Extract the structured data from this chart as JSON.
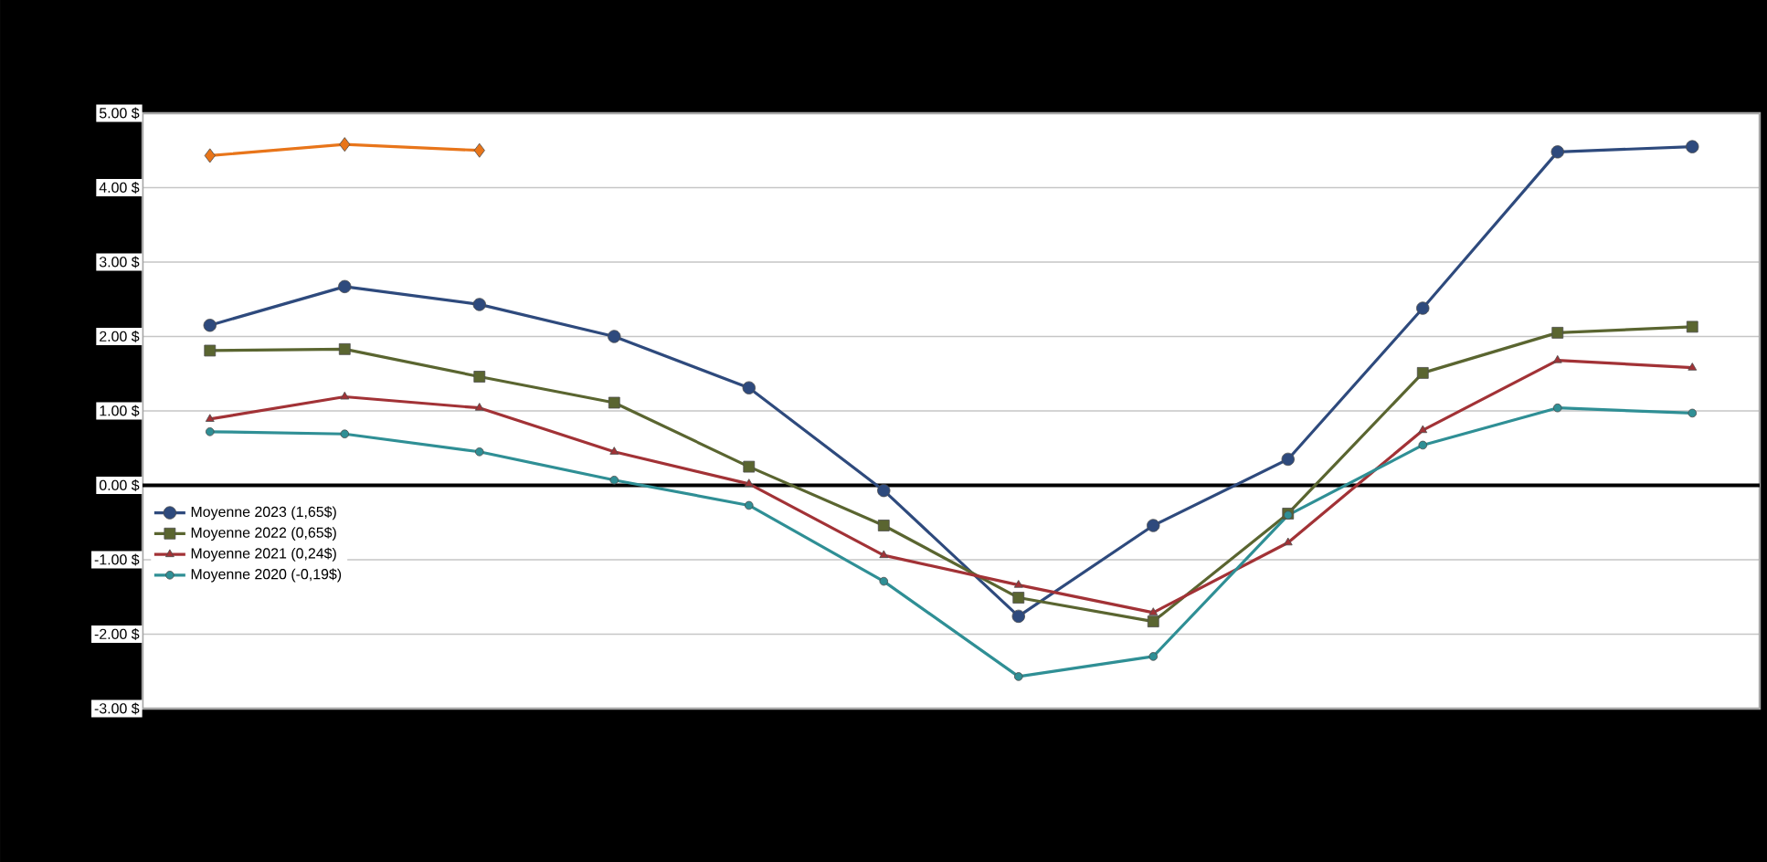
{
  "chart_data": {
    "type": "line",
    "categories": [
      null,
      null,
      null,
      null,
      null,
      null,
      null,
      null,
      null,
      null,
      null,
      null
    ],
    "series": [
      {
        "color": "#e8751a",
        "marker": "diamond",
        "values": [
          4.43,
          4.58,
          4.5,
          null,
          null,
          null,
          null,
          null,
          null,
          null,
          null,
          null
        ]
      },
      {
        "name": "Moyenne 2023 (1,65$)",
        "color": "#2e4a7d",
        "marker": "circle",
        "values": [
          2.15,
          2.67,
          2.43,
          2.0,
          1.31,
          -0.07,
          -1.76,
          -0.54,
          0.35,
          2.38,
          4.48,
          4.55
        ]
      },
      {
        "name": "Moyenne 2022 (0,65$)",
        "color": "#5a6530",
        "marker": "square",
        "values": [
          1.81,
          1.83,
          1.46,
          1.11,
          0.25,
          -0.54,
          -1.51,
          -1.83,
          -0.38,
          1.51,
          2.05,
          2.13
        ]
      },
      {
        "name": "Moyenne 2021 (0,24$)",
        "color": "#a23236",
        "marker": "triangle",
        "values": [
          0.89,
          1.19,
          1.04,
          0.45,
          0.02,
          -0.94,
          -1.34,
          -1.71,
          -0.77,
          0.74,
          1.68,
          1.58
        ]
      },
      {
        "name": "Moyenne 2020 (-0,19$)",
        "color": "#2f8f95",
        "marker": "circle",
        "values": [
          0.72,
          0.69,
          0.45,
          0.07,
          -0.27,
          -1.29,
          -2.57,
          -2.3,
          -0.4,
          0.54,
          1.04,
          0.97
        ]
      }
    ],
    "ylim": [
      -3,
      5
    ],
    "yticks": [
      {
        "value": 5,
        "label": "5.00 $"
      },
      {
        "value": 4,
        "label": "4.00 $"
      },
      {
        "value": 3,
        "label": "3.00 $"
      },
      {
        "value": 2,
        "label": "2.00 $"
      },
      {
        "value": 1,
        "label": "1.00 $"
      },
      {
        "value": 0,
        "label": "0.00 $"
      },
      {
        "value": -1,
        "label": "-1.00 $"
      },
      {
        "value": -2,
        "label": "-2.00 $"
      },
      {
        "value": -3,
        "label": "-3.00 $"
      }
    ],
    "ref_lines": [
      {
        "axis": "y",
        "value": 0,
        "color": "#000000"
      }
    ],
    "grid": "y",
    "legend": "left",
    "line_style": "solid"
  }
}
